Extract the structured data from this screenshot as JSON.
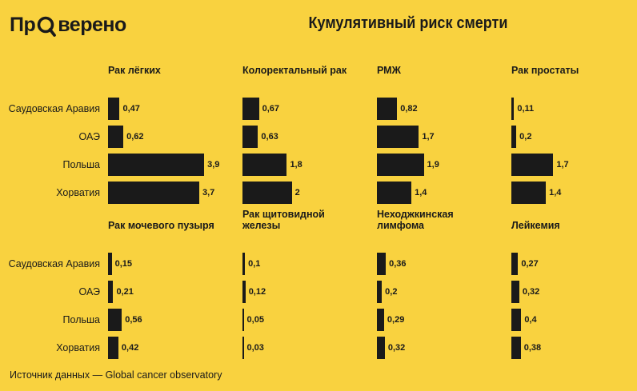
{
  "brand": {
    "prefix": "Пр",
    "suffix": "верено"
  },
  "title": "Кумулятивный риск смерти",
  "source": "Источник данных — Global cancer observatory",
  "colors": {
    "background": "#f9d23f",
    "bar": "#1a1a1a"
  },
  "chart_data": {
    "type": "bar",
    "orientation": "horizontal",
    "categories": [
      "Саудовская Аравия",
      "ОАЭ",
      "Польша",
      "Хорватия"
    ],
    "panels": [
      {
        "title": "Рак лёгких",
        "values": [
          0.47,
          0.62,
          3.9,
          3.7
        ],
        "labels": [
          "0,47",
          "0,62",
          "3,9",
          "3,7"
        ]
      },
      {
        "title": "Колоректальный рак",
        "values": [
          0.67,
          0.63,
          1.8,
          2
        ],
        "labels": [
          "0,67",
          "0,63",
          "1,8",
          "2"
        ]
      },
      {
        "title": "РМЖ",
        "values": [
          0.82,
          1.7,
          1.9,
          1.4
        ],
        "labels": [
          "0,82",
          "1,7",
          "1,9",
          "1,4"
        ]
      },
      {
        "title": "Рак простаты",
        "values": [
          0.11,
          0.2,
          1.7,
          1.4
        ],
        "labels": [
          "0,11",
          "0,2",
          "1,7",
          "1,4"
        ]
      },
      {
        "title": "Рак мочевого пузыря",
        "values": [
          0.15,
          0.21,
          0.56,
          0.42
        ],
        "labels": [
          "0,15",
          "0,21",
          "0,56",
          "0,42"
        ]
      },
      {
        "title": "Рак щитовидной железы",
        "values": [
          0.1,
          0.12,
          0.05,
          0.03
        ],
        "labels": [
          "0,1",
          "0,12",
          "0,05",
          "0,03"
        ]
      },
      {
        "title": "Неходжкинская лимфома",
        "values": [
          0.36,
          0.2,
          0.29,
          0.32
        ],
        "labels": [
          "0,36",
          "0,2",
          "0,29",
          "0,32"
        ]
      },
      {
        "title": "Лейкемия",
        "values": [
          0.27,
          0.32,
          0.4,
          0.38
        ],
        "labels": [
          "0,27",
          "0,32",
          "0,4",
          "0,38"
        ]
      }
    ]
  }
}
